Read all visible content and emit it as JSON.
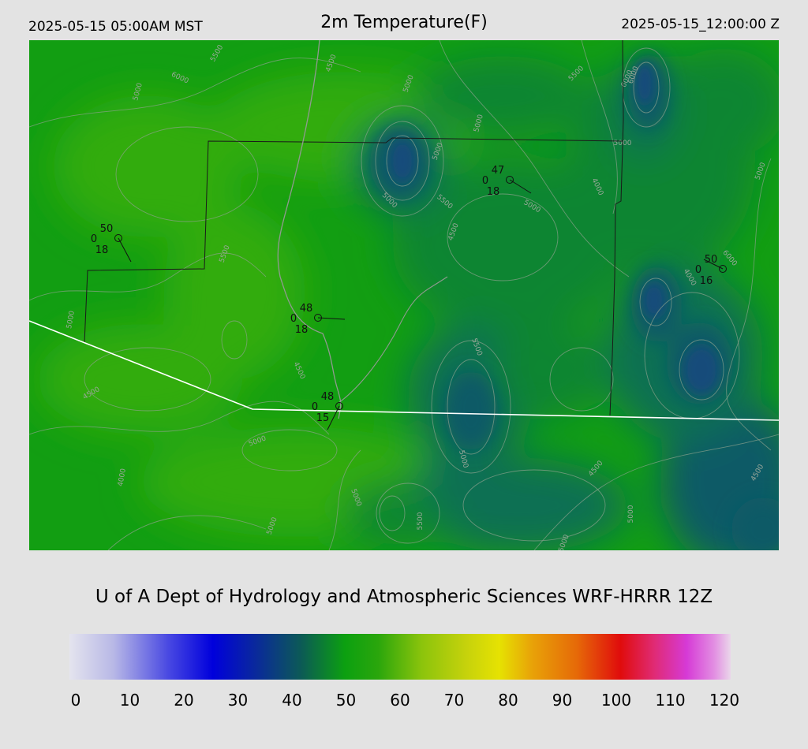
{
  "header": {
    "local_time": "2025-05-15 05:00AM MST",
    "title": "2m Temperature(F)",
    "valid_time": "2025-05-15_12:00:00 Z"
  },
  "map": {
    "field_colors": {
      "base": "#129e12",
      "light_green": "#30ac0c",
      "dark_green": "#0b8530",
      "teal": "#0a6f52",
      "deep_teal": "#0c5a66",
      "cold_core": "#134c7a"
    },
    "contour_labels": [
      "5500",
      "6000",
      "5000",
      "4500",
      "5000",
      "5500",
      "6000",
      "5000",
      "5000",
      "5500",
      "5000",
      "4000",
      "5000",
      "6000",
      "4500",
      "5000",
      "5500",
      "5000",
      "6000",
      "5000",
      "4500",
      "5500",
      "4000",
      "4500",
      "5000",
      "5000",
      "4000",
      "5000",
      "5500",
      "4500",
      "5000",
      "5000",
      "4500",
      "5000"
    ],
    "stations": [
      {
        "temp": "50",
        "dewpt": "0",
        "wind": "18"
      },
      {
        "temp": "47",
        "dewpt": "0",
        "wind": "18"
      },
      {
        "temp": "48",
        "dewpt": "0",
        "wind": "18"
      },
      {
        "temp": "48",
        "dewpt": "0",
        "wind": "15"
      },
      {
        "temp": "50",
        "dewpt": "0",
        "wind": "16"
      }
    ]
  },
  "credit": "U of A Dept of Hydrology and Atmospheric Sciences WRF-HRRR 12Z",
  "colorbar": {
    "ticks": [
      "0",
      "10",
      "20",
      "30",
      "40",
      "50",
      "60",
      "70",
      "80",
      "90",
      "100",
      "110",
      "120"
    ],
    "min": 0,
    "max": 120,
    "stops": [
      {
        "v": 0,
        "c": "#e4e4ee"
      },
      {
        "v": 8,
        "c": "#b8b8e6"
      },
      {
        "v": 18,
        "c": "#4848e2"
      },
      {
        "v": 26,
        "c": "#0000dc"
      },
      {
        "v": 34,
        "c": "#0a2a9a"
      },
      {
        "v": 42,
        "c": "#0c5a56"
      },
      {
        "v": 50,
        "c": "#0ca010"
      },
      {
        "v": 56,
        "c": "#2aa60c"
      },
      {
        "v": 64,
        "c": "#8cc40c"
      },
      {
        "v": 72,
        "c": "#c6d20c"
      },
      {
        "v": 78,
        "c": "#e6e202"
      },
      {
        "v": 84,
        "c": "#e8a208"
      },
      {
        "v": 92,
        "c": "#e66a08"
      },
      {
        "v": 100,
        "c": "#e00c0c"
      },
      {
        "v": 106,
        "c": "#e02a72"
      },
      {
        "v": 112,
        "c": "#d63ad6"
      },
      {
        "v": 117,
        "c": "#e28ee2"
      },
      {
        "v": 120,
        "c": "#ead6ea"
      }
    ]
  }
}
